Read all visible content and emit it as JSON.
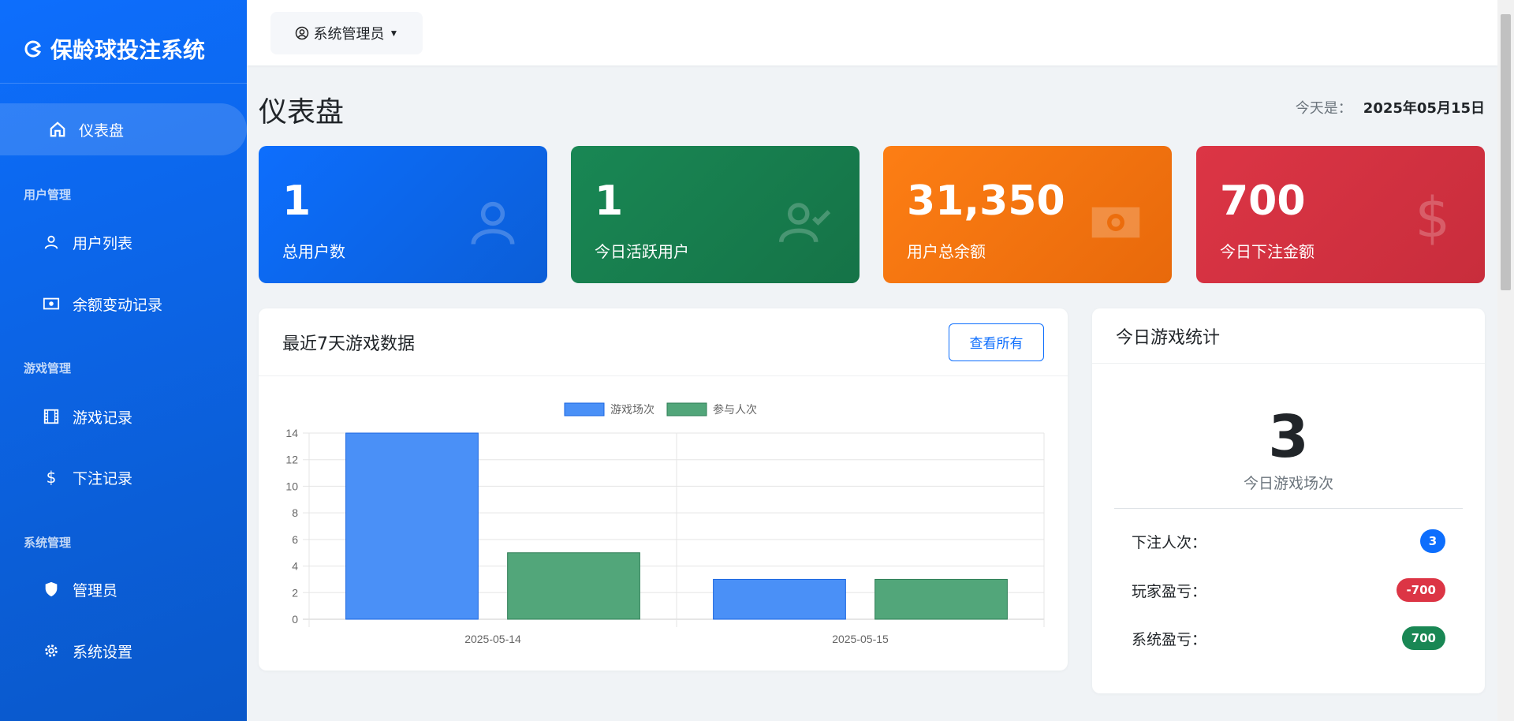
{
  "sidebar": {
    "brand": "保龄球投注系统",
    "items": [
      {
        "label": "仪表盘",
        "icon": "home-icon"
      },
      {
        "section": "用户管理"
      },
      {
        "label": "用户列表",
        "icon": "person-icon"
      },
      {
        "label": "余额变动记录",
        "icon": "cash-icon"
      },
      {
        "section": "游戏管理"
      },
      {
        "label": "游戏记录",
        "icon": "film-icon"
      },
      {
        "label": "下注记录",
        "icon": "dollar-icon"
      },
      {
        "section": "系统管理"
      },
      {
        "label": "管理员",
        "icon": "shield-icon"
      },
      {
        "label": "系统设置",
        "icon": "gear-icon"
      }
    ]
  },
  "topbar": {
    "user": "系统管理员"
  },
  "page": {
    "title": "仪表盘",
    "date_label": "今天是：",
    "date": "2025年05月15日"
  },
  "stats": [
    {
      "value": "1",
      "label": "总用户数",
      "color": "#0d6efd",
      "icon": "person-icon"
    },
    {
      "value": "1",
      "label": "今日活跃用户",
      "color": "#198754",
      "icon": "person-check-icon"
    },
    {
      "value": "31,350",
      "label": "用户总余额",
      "color": "#fd7e14",
      "icon": "cash-icon"
    },
    {
      "value": "700",
      "label": "今日下注金额",
      "color": "#dc3545",
      "icon": "dollar-icon"
    }
  ],
  "chart_panel": {
    "title": "最近7天游戏数据",
    "view_all": "查看所有"
  },
  "chart_data": {
    "type": "bar",
    "categories": [
      "2025-05-14",
      "2025-05-15"
    ],
    "series": [
      {
        "name": "游戏场次",
        "values": [
          14,
          3
        ],
        "color": "#4a90f7"
      },
      {
        "name": "参与人次",
        "values": [
          5,
          3
        ],
        "color": "#52a67a"
      }
    ],
    "ylim": [
      0,
      14
    ],
    "yticks": [
      0,
      2,
      4,
      6,
      8,
      10,
      12,
      14
    ],
    "grid": true,
    "legend": "top"
  },
  "today": {
    "title": "今日游戏统计",
    "games": "3",
    "games_label": "今日游戏场次",
    "rows": [
      {
        "label": "下注人次：",
        "value": "3",
        "color": "#0d6efd"
      },
      {
        "label": "玩家盈亏：",
        "value": "-700",
        "color": "#dc3545"
      },
      {
        "label": "系统盈亏：",
        "value": "700",
        "color": "#198754"
      }
    ]
  }
}
